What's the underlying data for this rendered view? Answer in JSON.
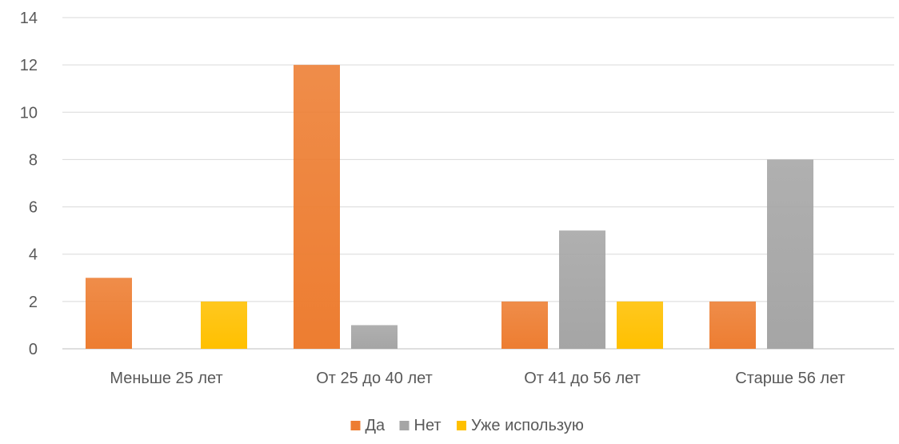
{
  "chart_data": {
    "type": "bar",
    "categories": [
      "Меньше 25 лет",
      "От 25 до 40 лет",
      "От 41 до 56 лет",
      "Старше 56 лет"
    ],
    "series": [
      {
        "name": "Да",
        "values": [
          3,
          12,
          2,
          2
        ],
        "color": "#ED7D31"
      },
      {
        "name": "Нет",
        "values": [
          0,
          1,
          5,
          8
        ],
        "color": "#A5A5A5"
      },
      {
        "name": "Уже использую",
        "values": [
          2,
          0,
          2,
          0
        ],
        "color": "#FFC000"
      }
    ],
    "y_ticks": [
      "0",
      "2",
      "4",
      "6",
      "8",
      "10",
      "12",
      "14"
    ],
    "ylim": [
      0,
      14
    ],
    "grid": true,
    "legend_position": "bottom",
    "title": "",
    "xlabel": "",
    "ylabel": ""
  }
}
